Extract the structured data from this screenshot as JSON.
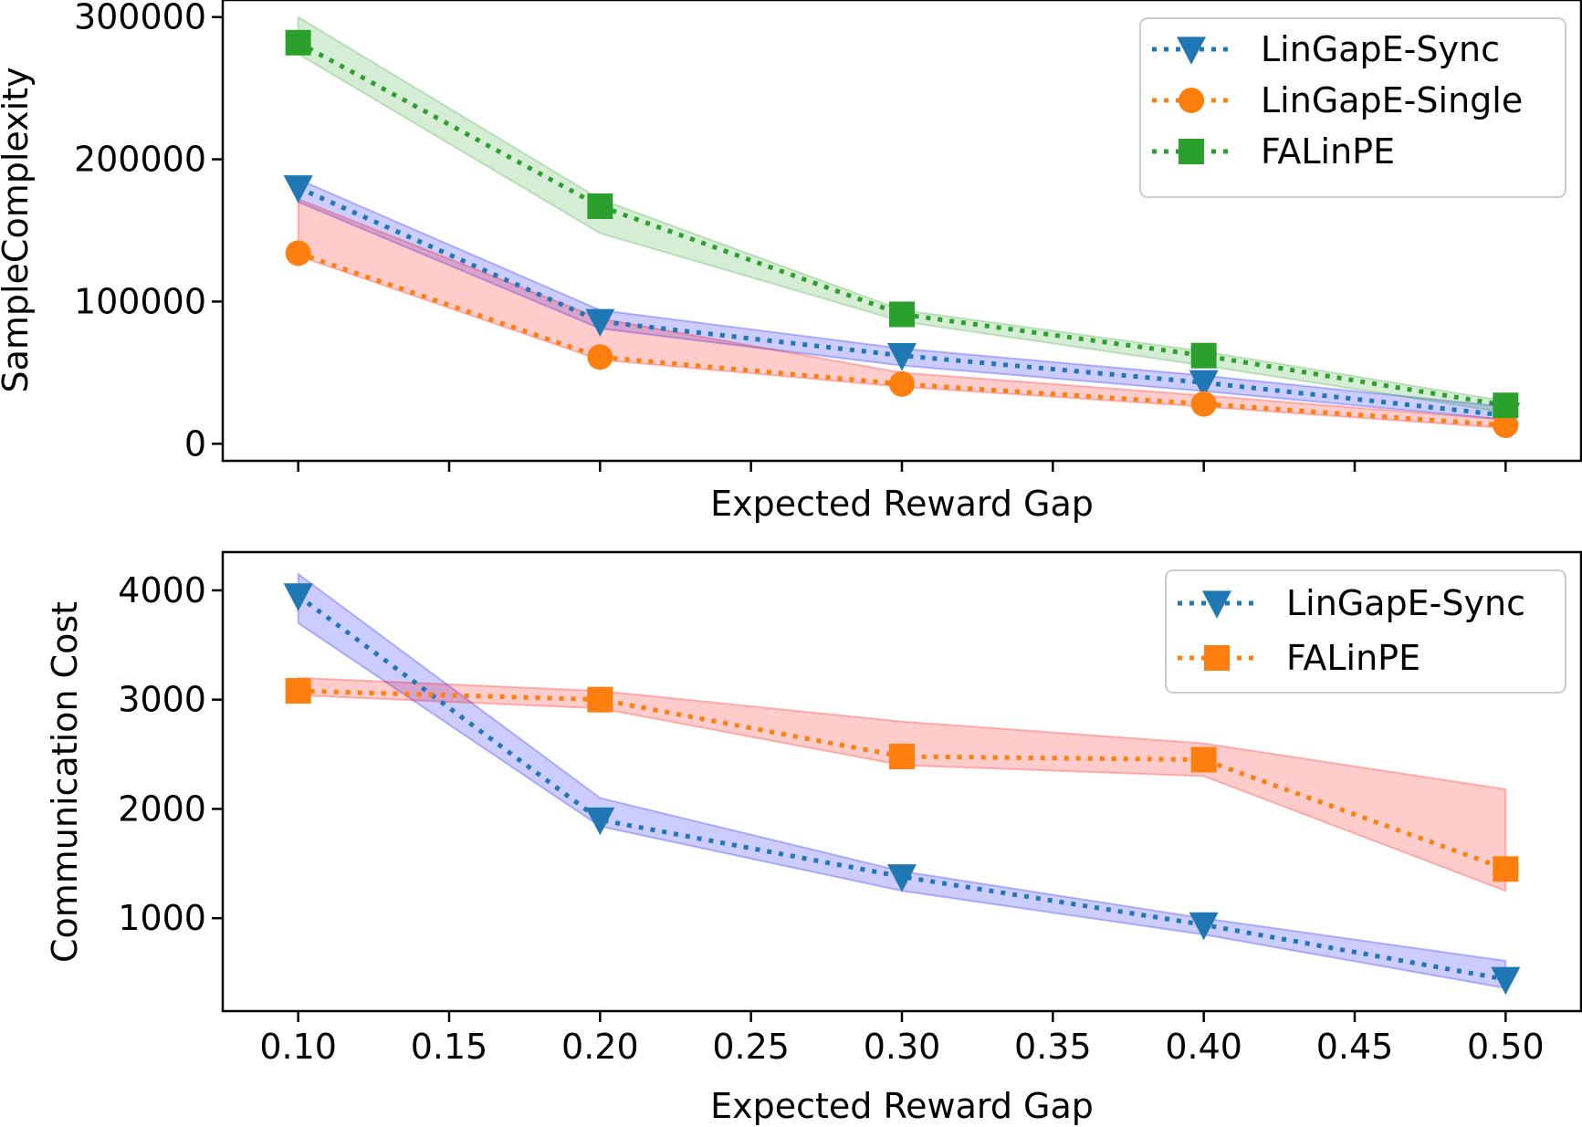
{
  "chart_data": [
    {
      "type": "line",
      "xlabel": "Expected Reward Gap",
      "ylabel": "SampleComplexity",
      "xlim": [
        0.075,
        0.525
      ],
      "ylim": [
        -12000,
        312000
      ],
      "x": [
        0.1,
        0.2,
        0.3,
        0.4,
        0.5
      ],
      "xticks": [
        0.1,
        0.15,
        0.2,
        0.25,
        0.3,
        0.35,
        0.4,
        0.45,
        0.5
      ],
      "xtick_labels_visible": false,
      "yticks": [
        0,
        100000,
        200000,
        300000
      ],
      "ytick_labels": [
        "0",
        "100000",
        "200000",
        "300000"
      ],
      "legend_position": "upper-right",
      "series": [
        {
          "name": "LinGapE-Sync",
          "marker": "triangle-down",
          "color": "#1f77b4",
          "band_color": "#0000ff",
          "values": [
            180000,
            86000,
            62000,
            43000,
            20000
          ],
          "lower": [
            170000,
            81000,
            55000,
            37000,
            17000
          ],
          "upper": [
            186000,
            94000,
            67000,
            48000,
            26000
          ]
        },
        {
          "name": "LinGapE-Single",
          "marker": "circle",
          "color": "#ff7f0e",
          "band_color": "#ff0000",
          "values": [
            134000,
            61000,
            42000,
            28000,
            13000
          ],
          "lower": [
            132000,
            59000,
            40000,
            26000,
            11000
          ],
          "upper": [
            172000,
            88000,
            50000,
            34000,
            17000
          ]
        },
        {
          "name": "FALinPE",
          "marker": "square",
          "color": "#2ca02c",
          "band_color": "#2ca02c",
          "values": [
            282000,
            167000,
            91000,
            62000,
            27000
          ],
          "lower": [
            274000,
            148000,
            86000,
            55000,
            22000
          ],
          "upper": [
            300000,
            172000,
            94000,
            65000,
            30000
          ]
        }
      ]
    },
    {
      "type": "line",
      "xlabel": "Expected Reward Gap",
      "ylabel": "Communication Cost",
      "xlim": [
        0.075,
        0.525
      ],
      "ylim": [
        150,
        4350
      ],
      "x": [
        0.1,
        0.2,
        0.3,
        0.4,
        0.5
      ],
      "xticks": [
        0.1,
        0.15,
        0.2,
        0.25,
        0.3,
        0.35,
        0.4,
        0.45,
        0.5
      ],
      "xtick_labels": [
        "0.10",
        "0.15",
        "0.20",
        "0.25",
        "0.30",
        "0.35",
        "0.40",
        "0.45",
        "0.50"
      ],
      "yticks": [
        1000,
        2000,
        3000,
        4000
      ],
      "ytick_labels": [
        "1000",
        "2000",
        "3000",
        "4000"
      ],
      "legend_position": "upper-right",
      "series": [
        {
          "name": "LinGapE-Sync",
          "marker": "triangle-down",
          "color": "#1f77b4",
          "band_color": "#0000ff",
          "values": [
            3950,
            1900,
            1380,
            940,
            440
          ],
          "lower": [
            3700,
            1840,
            1250,
            850,
            360
          ],
          "upper": [
            4150,
            2100,
            1430,
            1000,
            610
          ]
        },
        {
          "name": "FALinPE",
          "marker": "square",
          "color": "#ff7f0e",
          "band_color": "#ff0000",
          "values": [
            3080,
            3000,
            2480,
            2450,
            1450
          ],
          "lower": [
            3040,
            2920,
            2400,
            2300,
            1250
          ],
          "upper": [
            3200,
            3080,
            2800,
            2600,
            2180
          ]
        }
      ]
    }
  ]
}
